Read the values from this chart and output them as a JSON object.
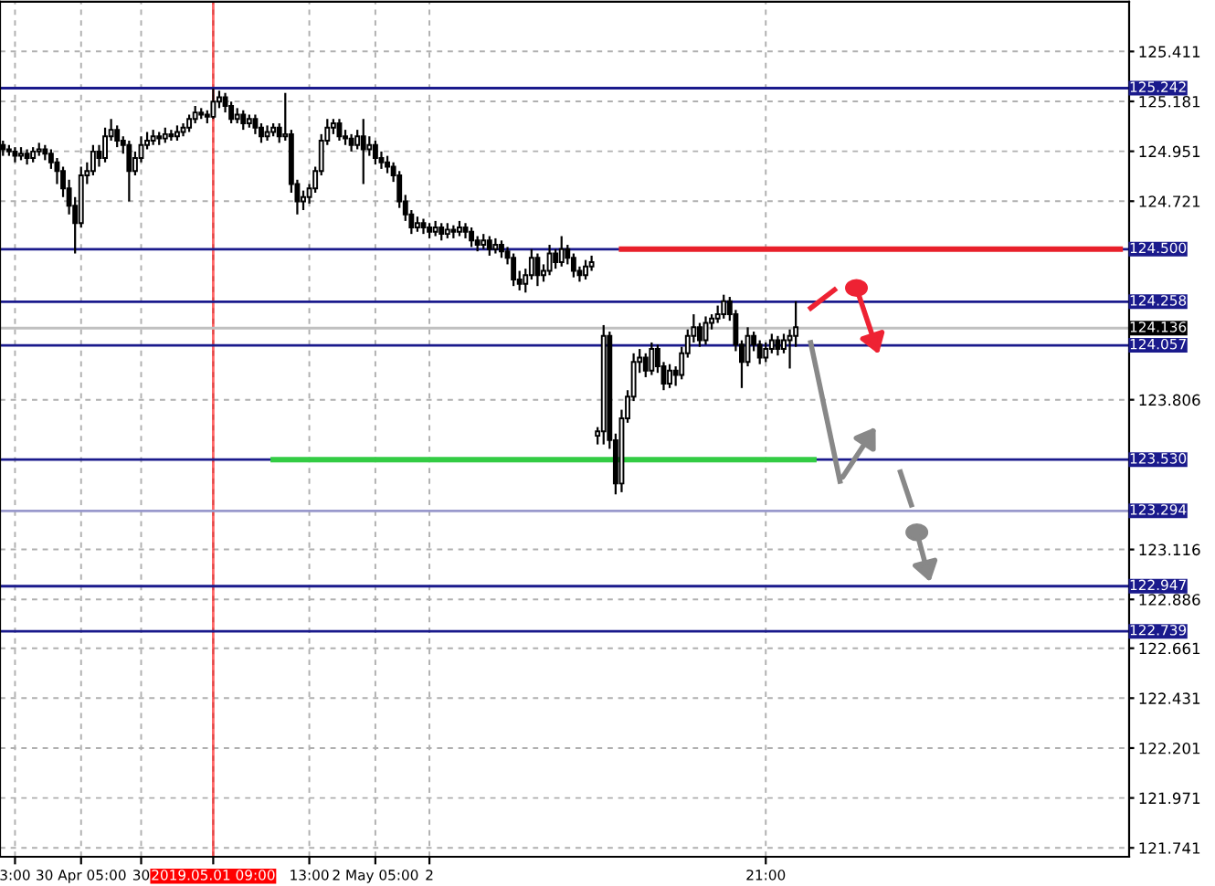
{
  "chart_data": {
    "type": "candlestick",
    "categories": [
      null,
      null,
      "3:00",
      null,
      null,
      null,
      null,
      null,
      null,
      null,
      null,
      null,
      null,
      "30 Apr 05:00",
      null,
      null,
      null,
      null,
      null,
      null,
      null,
      null,
      null,
      "30",
      null,
      null,
      null,
      null,
      null,
      null,
      null,
      null,
      null,
      null,
      null,
      "2019.05.01 09:00",
      null,
      null,
      null,
      null,
      null,
      null,
      null,
      null,
      null,
      null,
      null,
      null,
      null,
      null,
      null,
      "13:00",
      null,
      null,
      null,
      null,
      null,
      null,
      null,
      null,
      null,
      null,
      "2 May 05:00",
      null,
      null,
      null,
      null,
      null,
      null,
      null,
      null,
      "2",
      null,
      null,
      null,
      null,
      null,
      null,
      null,
      null,
      null,
      null,
      null,
      null,
      null,
      null,
      null,
      null,
      null,
      null,
      null,
      null,
      null,
      null,
      null,
      null,
      null,
      null,
      null,
      null,
      null,
      null,
      null,
      null,
      null,
      null,
      null,
      null,
      null,
      null,
      null,
      null,
      null,
      null,
      null,
      null,
      null,
      null,
      null,
      null,
      null,
      null,
      null,
      null,
      null,
      null,
      null,
      "21:00",
      null,
      null,
      null,
      null,
      null,
      null,
      null,
      null,
      null,
      null,
      null,
      null,
      null,
      null,
      null,
      null,
      null,
      null,
      null,
      null,
      null,
      null,
      null,
      null,
      null,
      null,
      null,
      null,
      null,
      null,
      null,
      null,
      null,
      null,
      null,
      null,
      null,
      null,
      null,
      null,
      null,
      null,
      null,
      null,
      null,
      null,
      null,
      null,
      null,
      null,
      null,
      null,
      null,
      null,
      null,
      null,
      null,
      null,
      null,
      null
    ],
    "ohlc": [
      [
        124.98,
        125.0,
        124.93,
        124.96
      ],
      [
        124.96,
        124.98,
        124.93,
        124.95
      ],
      [
        124.95,
        124.97,
        124.9,
        124.93
      ],
      [
        124.93,
        124.97,
        124.91,
        124.94
      ],
      [
        124.94,
        124.96,
        124.89,
        124.92
      ],
      [
        124.92,
        124.97,
        124.9,
        124.95
      ],
      [
        124.95,
        124.99,
        124.93,
        124.96
      ],
      [
        124.96,
        124.98,
        124.91,
        124.94
      ],
      [
        124.94,
        124.96,
        124.87,
        124.9
      ],
      [
        124.9,
        124.92,
        124.8,
        124.86
      ],
      [
        124.86,
        124.88,
        124.74,
        124.78
      ],
      [
        124.78,
        124.82,
        124.66,
        124.7
      ],
      [
        124.7,
        124.74,
        124.48,
        124.62
      ],
      [
        124.62,
        124.88,
        124.6,
        124.84
      ],
      [
        124.84,
        124.9,
        124.8,
        124.86
      ],
      [
        124.86,
        124.98,
        124.84,
        124.95
      ],
      [
        124.95,
        124.98,
        124.88,
        124.92
      ],
      [
        124.92,
        125.06,
        124.9,
        125.02
      ],
      [
        125.02,
        125.1,
        125.0,
        125.05
      ],
      [
        125.05,
        125.07,
        124.97,
        125.0
      ],
      [
        125.0,
        125.02,
        124.94,
        124.98
      ],
      [
        124.98,
        125.0,
        124.72,
        124.86
      ],
      [
        124.86,
        124.95,
        124.84,
        124.92
      ],
      [
        124.92,
        125.02,
        124.9,
        124.98
      ],
      [
        124.98,
        125.04,
        124.96,
        125.0
      ],
      [
        125.0,
        125.05,
        124.98,
        125.02
      ],
      [
        125.02,
        125.04,
        124.98,
        125.01
      ],
      [
        125.01,
        125.06,
        124.99,
        125.03
      ],
      [
        125.03,
        125.05,
        125.0,
        125.02
      ],
      [
        125.02,
        125.07,
        125.0,
        125.04
      ],
      [
        125.04,
        125.08,
        125.02,
        125.06
      ],
      [
        125.06,
        125.12,
        125.04,
        125.1
      ],
      [
        125.1,
        125.16,
        125.08,
        125.13
      ],
      [
        125.13,
        125.15,
        125.1,
        125.12
      ],
      [
        125.12,
        125.14,
        125.08,
        125.11
      ],
      [
        125.11,
        125.24,
        125.1,
        125.18
      ],
      [
        125.18,
        125.23,
        125.15,
        125.2
      ],
      [
        125.2,
        125.22,
        125.13,
        125.16
      ],
      [
        125.16,
        125.18,
        125.08,
        125.1
      ],
      [
        125.1,
        125.15,
        125.08,
        125.12
      ],
      [
        125.12,
        125.14,
        125.05,
        125.08
      ],
      [
        125.08,
        125.12,
        125.06,
        125.1
      ],
      [
        125.1,
        125.12,
        125.03,
        125.06
      ],
      [
        125.06,
        125.08,
        124.99,
        125.02
      ],
      [
        125.02,
        125.07,
        125.0,
        125.04
      ],
      [
        125.04,
        125.08,
        125.02,
        125.06
      ],
      [
        125.06,
        125.08,
        124.99,
        125.02
      ],
      [
        125.02,
        125.22,
        125.0,
        125.03
      ],
      [
        125.03,
        125.05,
        124.76,
        124.8
      ],
      [
        124.8,
        124.82,
        124.66,
        124.72
      ],
      [
        124.72,
        124.77,
        124.68,
        124.74
      ],
      [
        124.74,
        124.8,
        124.71,
        124.78
      ],
      [
        124.78,
        124.88,
        124.76,
        124.86
      ],
      [
        124.86,
        125.03,
        124.84,
        125.0
      ],
      [
        125.0,
        125.1,
        124.98,
        125.06
      ],
      [
        125.06,
        125.1,
        125.03,
        125.08
      ],
      [
        125.08,
        125.1,
        125.0,
        125.02
      ],
      [
        125.02,
        125.05,
        124.98,
        125.01
      ],
      [
        125.01,
        125.03,
        124.95,
        124.98
      ],
      [
        124.98,
        125.05,
        124.96,
        125.02
      ],
      [
        125.02,
        125.1,
        124.8,
        124.96
      ],
      [
        124.96,
        125.02,
        124.93,
        124.98
      ],
      [
        124.98,
        125.0,
        124.89,
        124.92
      ],
      [
        124.92,
        124.95,
        124.87,
        124.9
      ],
      [
        124.9,
        124.93,
        124.85,
        124.88
      ],
      [
        124.88,
        124.9,
        124.81,
        124.84
      ],
      [
        124.84,
        124.86,
        124.69,
        124.72
      ],
      [
        124.72,
        124.75,
        124.63,
        124.66
      ],
      [
        124.66,
        124.68,
        124.57,
        124.6
      ],
      [
        124.6,
        124.65,
        124.58,
        124.62
      ],
      [
        124.62,
        124.64,
        124.57,
        124.6
      ],
      [
        124.6,
        124.62,
        124.55,
        124.58
      ],
      [
        124.58,
        124.63,
        124.56,
        124.6
      ],
      [
        124.6,
        124.62,
        124.54,
        124.57
      ],
      [
        124.57,
        124.62,
        124.55,
        124.59
      ],
      [
        124.59,
        124.61,
        124.55,
        124.58
      ],
      [
        124.58,
        124.63,
        124.56,
        124.6
      ],
      [
        124.6,
        124.62,
        124.55,
        124.58
      ],
      [
        124.58,
        124.6,
        124.51,
        124.54
      ],
      [
        124.54,
        124.56,
        124.49,
        124.52
      ],
      [
        124.52,
        124.57,
        124.5,
        124.54
      ],
      [
        124.54,
        124.56,
        124.47,
        124.5
      ],
      [
        124.5,
        124.55,
        124.48,
        124.52
      ],
      [
        124.52,
        124.54,
        124.46,
        124.49
      ],
      [
        124.49,
        124.51,
        124.43,
        124.46
      ],
      [
        124.46,
        124.48,
        124.33,
        124.36
      ],
      [
        124.36,
        124.4,
        124.31,
        124.34
      ],
      [
        124.34,
        124.41,
        124.3,
        124.38
      ],
      [
        124.38,
        124.5,
        124.36,
        124.46
      ],
      [
        124.46,
        124.48,
        124.33,
        124.38
      ],
      [
        124.38,
        124.43,
        124.35,
        124.4
      ],
      [
        124.4,
        124.52,
        124.38,
        124.48
      ],
      [
        124.48,
        124.5,
        124.41,
        124.44
      ],
      [
        124.44,
        124.56,
        124.42,
        124.5
      ],
      [
        124.5,
        124.52,
        124.43,
        124.46
      ],
      [
        124.46,
        124.48,
        124.37,
        124.4
      ],
      [
        124.4,
        124.42,
        124.35,
        124.38
      ],
      [
        124.38,
        124.45,
        124.36,
        124.42
      ],
      [
        124.42,
        124.47,
        124.4,
        124.44
      ],
      [
        123.64,
        123.68,
        123.6,
        123.66
      ],
      [
        123.66,
        124.15,
        123.6,
        124.1
      ],
      [
        124.1,
        124.12,
        123.58,
        123.62
      ],
      [
        123.62,
        123.65,
        123.37,
        123.42
      ],
      [
        123.42,
        123.76,
        123.38,
        123.72
      ],
      [
        123.72,
        123.85,
        123.7,
        123.82
      ],
      [
        123.82,
        124.02,
        123.8,
        123.98
      ],
      [
        123.98,
        124.04,
        123.93,
        124.0
      ],
      [
        124.0,
        124.02,
        123.91,
        123.94
      ],
      [
        123.94,
        124.07,
        123.92,
        124.04
      ],
      [
        124.04,
        124.06,
        123.93,
        123.96
      ],
      [
        123.96,
        123.98,
        123.85,
        123.88
      ],
      [
        123.88,
        123.97,
        123.86,
        123.94
      ],
      [
        123.94,
        123.96,
        123.87,
        123.92
      ],
      [
        123.92,
        124.05,
        123.9,
        124.02
      ],
      [
        124.02,
        124.13,
        124.0,
        124.1
      ],
      [
        124.1,
        124.2,
        124.07,
        124.14
      ],
      [
        124.14,
        124.16,
        124.05,
        124.08
      ],
      [
        124.08,
        124.19,
        124.06,
        124.16
      ],
      [
        124.16,
        124.2,
        124.13,
        124.18
      ],
      [
        124.18,
        124.24,
        124.16,
        124.2
      ],
      [
        124.2,
        124.29,
        124.18,
        124.26
      ],
      [
        124.26,
        124.28,
        124.17,
        124.2
      ],
      [
        124.2,
        124.22,
        124.03,
        124.06
      ],
      [
        124.06,
        124.08,
        123.86,
        123.98
      ],
      [
        123.98,
        124.14,
        123.96,
        124.1
      ],
      [
        124.1,
        124.12,
        124.03,
        124.06
      ],
      [
        124.06,
        124.08,
        123.97,
        124.0
      ],
      [
        124.0,
        124.07,
        123.98,
        124.04
      ],
      [
        124.04,
        124.11,
        124.02,
        124.08
      ],
      [
        124.08,
        124.1,
        124.01,
        124.04
      ],
      [
        124.04,
        124.11,
        124.02,
        124.08
      ],
      [
        124.08,
        124.13,
        123.95,
        124.1
      ],
      [
        124.1,
        124.26,
        124.05,
        124.14
      ],
      null,
      null,
      null,
      null,
      null,
      null,
      null,
      null,
      null,
      null,
      null,
      null,
      null,
      null,
      null,
      null,
      null,
      null,
      null,
      null,
      null,
      null,
      null,
      null,
      null,
      null,
      null,
      null,
      null,
      null,
      null,
      null,
      null,
      null,
      null,
      null,
      null,
      null,
      null,
      null,
      null,
      null,
      null,
      null,
      null,
      null,
      null,
      null,
      null,
      null,
      null,
      null,
      null,
      null,
      null
    ],
    "series": [
      {
        "type": "line",
        "color": "#e8202a",
        "values": [
          null,
          null,
          null,
          null,
          null,
          null,
          null,
          null,
          null,
          null,
          null,
          null,
          null,
          null,
          null,
          null,
          null,
          null,
          null,
          null,
          null,
          null,
          null,
          null,
          null,
          null,
          null,
          null,
          null,
          null,
          null,
          null,
          null,
          null,
          null,
          null,
          null,
          null,
          null,
          null,
          null,
          null,
          null,
          null,
          null,
          null,
          null,
          null,
          null,
          null,
          null,
          null,
          null,
          null,
          null,
          null,
          null,
          null,
          null,
          null,
          null,
          null,
          null,
          null,
          null,
          null,
          null,
          null,
          null,
          null,
          null,
          null,
          null,
          null,
          null,
          null,
          null,
          null,
          null,
          null,
          null,
          null,
          null,
          null,
          null,
          null,
          null,
          null,
          null,
          null,
          null,
          null,
          null,
          null,
          null,
          null,
          null,
          null,
          null,
          null,
          null,
          null,
          null,
          124.5,
          124.5,
          124.5,
          124.5,
          124.5,
          124.5,
          124.5,
          124.5,
          124.5,
          124.5,
          124.5,
          124.5,
          124.5,
          124.5,
          124.5,
          124.5,
          124.5,
          124.5,
          124.5,
          124.5,
          124.5,
          124.5,
          124.5,
          124.5,
          124.5,
          124.5,
          124.5,
          124.5,
          124.5,
          124.5,
          124.5,
          124.5,
          124.5,
          124.5,
          124.5,
          124.5,
          124.5,
          124.5,
          124.5,
          124.5,
          124.5,
          124.5,
          124.5,
          124.5,
          124.5,
          124.5,
          124.5,
          124.5,
          124.5,
          124.5,
          124.5,
          124.5,
          124.5,
          124.5,
          124.5,
          124.5,
          124.5,
          124.5,
          124.5,
          124.5,
          124.5,
          124.5,
          124.5,
          124.5,
          124.5,
          124.5,
          124.5,
          124.5,
          124.5,
          124.5,
          124.5,
          124.5,
          124.5,
          124.5,
          124.5,
          124.5,
          124.5,
          124.5,
          124.5,
          124.5,
          124.5,
          124.5,
          124.5,
          124.5,
          null
        ]
      },
      {
        "type": "line",
        "color": "#33cc44",
        "values": [
          null,
          null,
          null,
          null,
          null,
          null,
          null,
          null,
          null,
          null,
          null,
          null,
          null,
          null,
          null,
          null,
          null,
          null,
          null,
          null,
          null,
          null,
          null,
          null,
          null,
          null,
          null,
          null,
          null,
          null,
          null,
          null,
          null,
          null,
          null,
          null,
          null,
          null,
          null,
          null,
          null,
          null,
          null,
          null,
          null,
          123.53,
          123.53,
          123.53,
          123.53,
          123.53,
          123.53,
          123.53,
          123.53,
          123.53,
          123.53,
          123.53,
          123.53,
          123.53,
          123.53,
          123.53,
          123.53,
          123.53,
          123.53,
          123.53,
          123.53,
          123.53,
          123.53,
          123.53,
          123.53,
          123.53,
          123.53,
          123.53,
          123.53,
          123.53,
          123.53,
          123.53,
          123.53,
          123.53,
          123.53,
          123.53,
          123.53,
          123.53,
          123.53,
          123.53,
          123.53,
          123.53,
          123.53,
          123.53,
          123.53,
          123.53,
          123.53,
          123.53,
          123.53,
          123.53,
          123.53,
          123.53,
          123.53,
          123.53,
          123.53,
          123.53,
          123.53,
          123.53,
          123.53,
          123.53,
          123.53,
          123.53,
          123.53,
          123.53,
          123.53,
          123.53,
          123.53,
          123.53,
          123.53,
          123.53,
          123.53,
          123.53,
          123.53,
          123.53,
          123.53,
          123.53,
          123.53,
          123.53,
          123.53,
          123.53,
          123.53,
          123.53,
          123.53,
          123.53,
          123.53,
          123.53,
          123.53,
          123.53,
          123.53,
          123.53,
          123.53,
          123.53,
          null,
          null,
          null,
          null,
          null,
          null,
          null,
          null,
          null,
          null,
          null,
          null,
          null,
          null,
          null,
          null,
          null,
          null,
          null,
          null,
          null,
          null,
          null,
          null,
          null,
          null,
          null,
          null,
          null,
          null,
          null,
          null,
          null,
          null,
          null,
          null,
          null,
          null,
          null,
          null,
          null,
          null,
          null,
          null,
          null,
          null,
          null,
          null,
          null,
          null,
          null,
          null
        ]
      }
    ],
    "ylim": [
      121.7,
      125.64
    ],
    "yticks": [
      125.411,
      125.181,
      124.951,
      124.721,
      123.806,
      123.116,
      122.886,
      122.661,
      122.431,
      122.201,
      121.971,
      121.741
    ],
    "ref_lines": [
      {
        "axis": "x",
        "value": "2019.05.01 09:00",
        "color": "#ff0000"
      },
      {
        "axis": "y",
        "value": 125.242,
        "label": "125.242",
        "color": "#1a1a8c"
      },
      {
        "axis": "y",
        "value": 124.5,
        "label": "124.500",
        "color": "#1a1a8c"
      },
      {
        "axis": "y",
        "value": 124.258,
        "label": "124.258",
        "color": "#1a1a8c"
      },
      {
        "axis": "y",
        "value": 124.136,
        "label": "124.136",
        "color": "#c0c0c0"
      },
      {
        "axis": "y",
        "value": 124.057,
        "label": "124.057",
        "color": "#1a1a8c"
      },
      {
        "axis": "y",
        "value": 123.53,
        "label": "123.530",
        "color": "#1a1a8c"
      },
      {
        "axis": "y",
        "value": 123.294,
        "label": "123.294",
        "color": "#9999cc"
      },
      {
        "axis": "y",
        "value": 122.947,
        "label": "122.947",
        "color": "#1a1a8c"
      },
      {
        "axis": "y",
        "value": 122.739,
        "label": "122.739",
        "color": "#1a1a8c"
      }
    ],
    "grid": true
  }
}
